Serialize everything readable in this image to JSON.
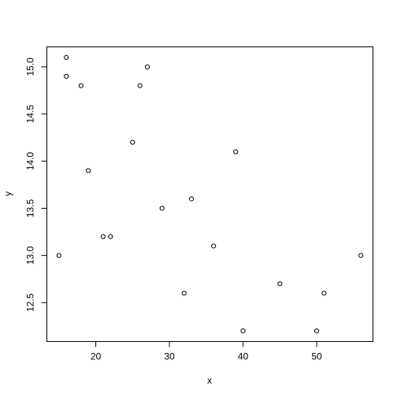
{
  "chart_data": {
    "type": "scatter",
    "title": "",
    "xlabel": "x",
    "ylabel": "y",
    "xlim": [
      13.36,
      57.64
    ],
    "ylim": [
      12.088,
      15.212
    ],
    "x_ticks": [
      20,
      30,
      40,
      50
    ],
    "y_ticks": [
      12.5,
      13.0,
      13.5,
      14.0,
      14.5,
      15.0
    ],
    "x_tick_labels": [
      "20",
      "30",
      "40",
      "50"
    ],
    "y_tick_labels": [
      "12.5",
      "13.0",
      "13.5",
      "14.0",
      "14.5",
      "15.0"
    ],
    "grid": false,
    "legend": "none",
    "points": [
      {
        "x": 15,
        "y": 13.0
      },
      {
        "x": 16,
        "y": 15.1
      },
      {
        "x": 16,
        "y": 14.9
      },
      {
        "x": 18,
        "y": 14.8
      },
      {
        "x": 19,
        "y": 13.9
      },
      {
        "x": 21,
        "y": 13.2
      },
      {
        "x": 22,
        "y": 13.2
      },
      {
        "x": 25,
        "y": 14.2
      },
      {
        "x": 26,
        "y": 14.8
      },
      {
        "x": 27,
        "y": 15.0
      },
      {
        "x": 29,
        "y": 13.5
      },
      {
        "x": 32,
        "y": 12.6
      },
      {
        "x": 33,
        "y": 13.6
      },
      {
        "x": 36,
        "y": 13.1
      },
      {
        "x": 39,
        "y": 14.1
      },
      {
        "x": 40,
        "y": 12.2
      },
      {
        "x": 45,
        "y": 12.7
      },
      {
        "x": 50,
        "y": 12.2
      },
      {
        "x": 51,
        "y": 12.6
      },
      {
        "x": 56,
        "y": 13.0
      }
    ]
  }
}
